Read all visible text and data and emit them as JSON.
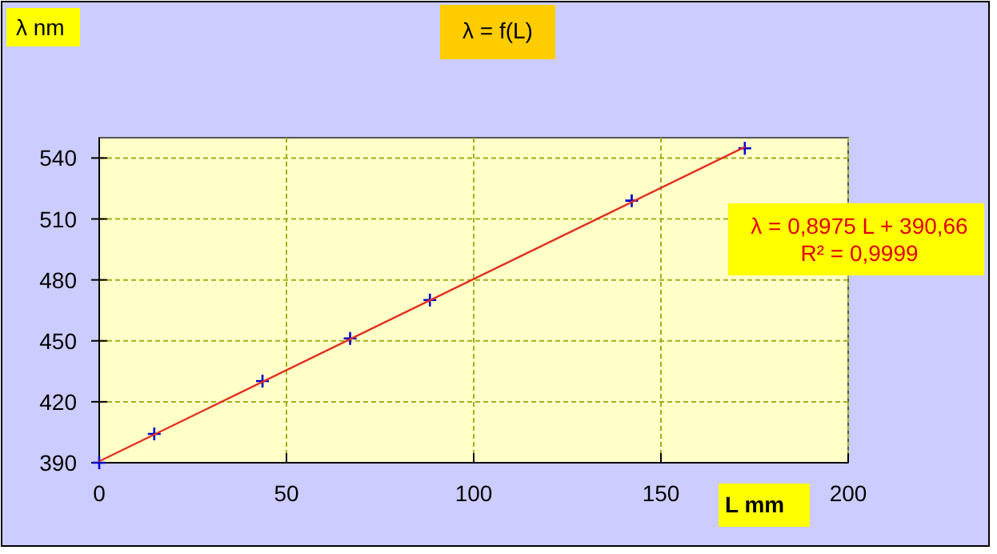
{
  "chart_data": {
    "type": "scatter",
    "title": "λ = f(L)",
    "xlabel": "L mm",
    "ylabel": "λ nm",
    "xlim": [
      0,
      200
    ],
    "xticks": [
      0,
      50,
      100,
      150,
      200
    ],
    "ylim": [
      390,
      550
    ],
    "yticks": [
      390,
      420,
      450,
      480,
      510,
      540
    ],
    "grid": true,
    "series": [
      {
        "marker": "cross",
        "color": "#0000cc",
        "x": [
          0,
          14.7,
          43.6,
          67,
          88.3,
          142.2,
          172.4
        ],
        "values": [
          390,
          404.2,
          430.2,
          451.2,
          470.1,
          519,
          544.8
        ]
      },
      {
        "type": "line",
        "color": "#e03020",
        "x": [
          0,
          172.4
        ],
        "values": [
          390.7,
          545.4
        ]
      }
    ],
    "annotations": [
      "λ = 0,8975  L + 390,66",
      "R² = 0,9999"
    ]
  }
}
